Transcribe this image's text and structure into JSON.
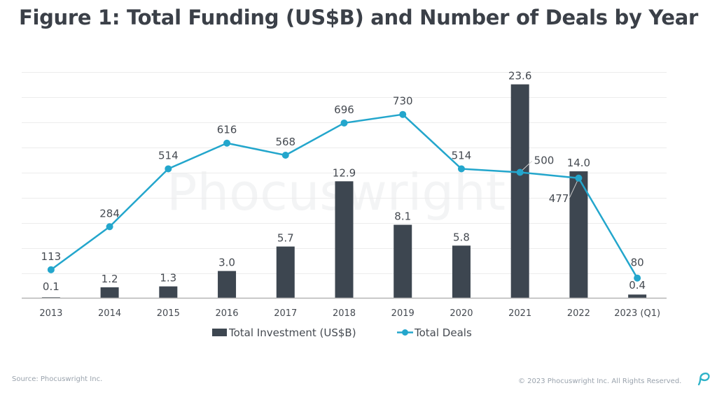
{
  "figure": {
    "title": "Figure 1: Total Funding (US$B) and Number of Deals by Year",
    "watermark": "Phocuswright",
    "source": "Source: Phocuswright Inc.",
    "copyright": "© 2023 Phocuswright Inc. All Rights Reserved.",
    "logo_icon": "phocuswright-p-logo-icon",
    "colors": {
      "bar": "#3d4650",
      "line": "#23a6cc",
      "grid": "#ececec",
      "axis": "#b5b5b5",
      "text": "#4a4f56"
    }
  },
  "chart_data": {
    "type": "bar+line",
    "title": "Figure 1: Total Funding (US$B) and Number of Deals by Year",
    "xlabel": "",
    "ylabel": "",
    "categories": [
      "2013",
      "2014",
      "2015",
      "2016",
      "2017",
      "2018",
      "2019",
      "2020",
      "2021",
      "2022",
      "2023 (Q1)"
    ],
    "series": [
      {
        "name": "Total Investment (US$B)",
        "type": "bar",
        "axis": "left",
        "values": [
          0.1,
          1.2,
          1.3,
          3.0,
          5.7,
          12.9,
          8.1,
          5.8,
          23.6,
          14.0,
          0.4
        ],
        "labels": [
          "0.1",
          "1.2",
          "1.3",
          "3.0",
          "5.7",
          "12.9",
          "8.1",
          "5.8",
          "23.6",
          "14.0",
          "0.4"
        ]
      },
      {
        "name": "Total Deals",
        "type": "line",
        "axis": "right",
        "values": [
          113,
          284,
          514,
          616,
          568,
          696,
          730,
          514,
          500,
          477,
          80
        ],
        "labels": [
          "113",
          "284",
          "514",
          "616",
          "568",
          "696",
          "730",
          "514",
          "500",
          "477",
          "80"
        ]
      }
    ],
    "y_left_range": [
      0,
      25
    ],
    "y_right_range": [
      0,
      900
    ],
    "gridlines": true,
    "gridline_step_right": 100,
    "axis_tick_labels_visible": false,
    "legend": {
      "position": "bottom-center",
      "entries": [
        "Total Investment (US$B)",
        "Total Deals"
      ]
    }
  }
}
